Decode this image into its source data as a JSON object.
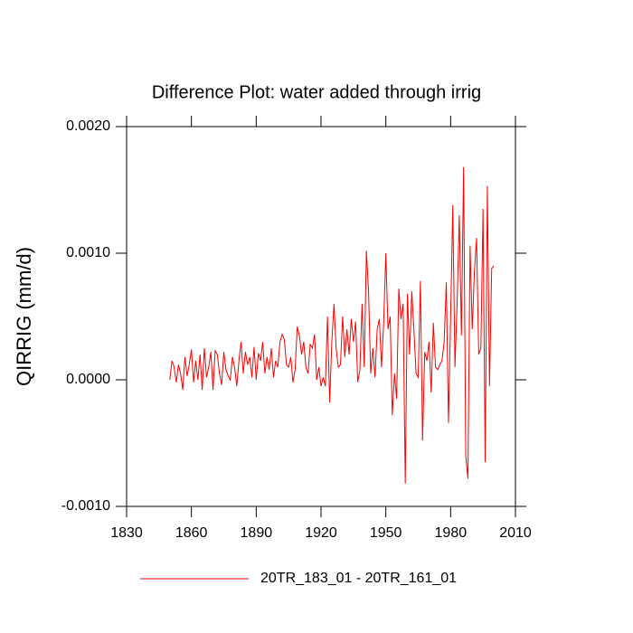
{
  "chart_data": {
    "type": "line",
    "title": "Difference Plot: water added through irrig",
    "ylabel": "QIRRIG  (mm/d)",
    "x": [
      1850,
      1851,
      1852,
      1853,
      1854,
      1855,
      1856,
      1857,
      1858,
      1859,
      1860,
      1861,
      1862,
      1863,
      1864,
      1865,
      1866,
      1867,
      1868,
      1869,
      1870,
      1871,
      1872,
      1873,
      1874,
      1875,
      1876,
      1877,
      1878,
      1879,
      1880,
      1881,
      1882,
      1883,
      1884,
      1885,
      1886,
      1887,
      1888,
      1889,
      1890,
      1891,
      1892,
      1893,
      1894,
      1895,
      1896,
      1897,
      1898,
      1899,
      1900,
      1901,
      1902,
      1903,
      1904,
      1905,
      1906,
      1907,
      1908,
      1909,
      1910,
      1911,
      1912,
      1913,
      1914,
      1915,
      1916,
      1917,
      1918,
      1919,
      1920,
      1921,
      1922,
      1923,
      1924,
      1925,
      1926,
      1927,
      1928,
      1929,
      1930,
      1931,
      1932,
      1933,
      1934,
      1935,
      1936,
      1937,
      1938,
      1939,
      1940,
      1941,
      1942,
      1943,
      1944,
      1945,
      1946,
      1947,
      1948,
      1949,
      1950,
      1951,
      1952,
      1953,
      1954,
      1955,
      1956,
      1957,
      1958,
      1959,
      1960,
      1961,
      1962,
      1963,
      1964,
      1965,
      1966,
      1967,
      1968,
      1969,
      1970,
      1971,
      1972,
      1973,
      1974,
      1975,
      1976,
      1977,
      1978,
      1979,
      1980,
      1981,
      1982,
      1983,
      1984,
      1985,
      1986,
      1987,
      1988,
      1989,
      1990,
      1991,
      1992,
      1993,
      1994,
      1995,
      1996,
      1997,
      1998,
      1999,
      2000
    ],
    "series": [
      {
        "name": "20TR_183_01 - 20TR_161_01",
        "color": "#ff0000",
        "values": [
          0.0,
          0.00015,
          0.0001,
          -2e-05,
          0.00012,
          5e-05,
          -8e-05,
          0.00018,
          3e-05,
          0.00012,
          0.00024,
          -2e-05,
          0.00015,
          0.0,
          0.0002,
          -8e-05,
          0.00025,
          2e-05,
          0.0001,
          0.00022,
          -8e-05,
          0.00023,
          0.0002,
          5e-05,
          -4e-05,
          0.00022,
          8e-05,
          3e-05,
          0.0,
          0.00018,
          0.0001,
          -5e-05,
          0.00015,
          0.0003,
          5e-05,
          0.00022,
          0.00012,
          0.00018,
          2e-05,
          0.00026,
          0.0,
          0.00021,
          0.00015,
          0.0003,
          5e-05,
          0.00018,
          8e-05,
          0.00025,
          2e-05,
          0.00015,
          0.0001,
          0.0003,
          0.00036,
          0.00032,
          0.00012,
          0.0001,
          0.00018,
          -2e-05,
          8e-05,
          0.00042,
          0.00035,
          0.0002,
          0.0003,
          0.0001,
          5e-05,
          0.00028,
          0.00025,
          0.00036,
          0.0,
          0.0001,
          -5e-05,
          2e-05,
          -5e-05,
          0.0005,
          -0.00018,
          0.0003,
          0.0006,
          0.00025,
          0.0001,
          0.00012,
          0.0005,
          0.00018,
          0.0004,
          0.0002,
          0.00048,
          0.0003,
          0.00046,
          -2e-05,
          8e-05,
          0.0006,
          0.0001,
          0.00102,
          0.0007,
          5e-05,
          0.00025,
          2e-05,
          0.0004,
          0.00048,
          0.0001,
          0.00045,
          0.001,
          0.0004,
          0.0005,
          -0.00028,
          5e-05,
          -0.00015,
          0.00072,
          0.00048,
          0.0006,
          -0.00082,
          0.00068,
          0.0002,
          0.0007,
          0.0004,
          5e-05,
          2e-05,
          0.00078,
          -0.00048,
          0.00022,
          0.00015,
          0.0003,
          -0.0001,
          0.00045,
          0.0001,
          8e-05,
          0.00012,
          0.00015,
          0.0003,
          0.00077,
          -0.00034,
          0.0005,
          0.00138,
          0.0001,
          0.0006,
          0.0013,
          0.00035,
          0.00168,
          -0.0006,
          -0.00078,
          0.00106,
          0.0004,
          0.00085,
          0.00112,
          0.0002,
          0.00025,
          0.00135,
          -0.00065,
          0.00153,
          -5e-05,
          0.00088,
          0.0009
        ]
      }
    ],
    "xlim": [
      1830,
      2010
    ],
    "xticks": [
      1830,
      1860,
      1890,
      1920,
      1950,
      1980,
      2010
    ],
    "ylim": [
      -0.001,
      0.002
    ],
    "yticks": [
      {
        "value": -0.001,
        "label": "-0.0010"
      },
      {
        "value": 0,
        "label": "0.0000"
      },
      {
        "value": 0.001,
        "label": "0.0010"
      },
      {
        "value": 0.002,
        "label": "0.0020"
      }
    ],
    "grid": false
  }
}
